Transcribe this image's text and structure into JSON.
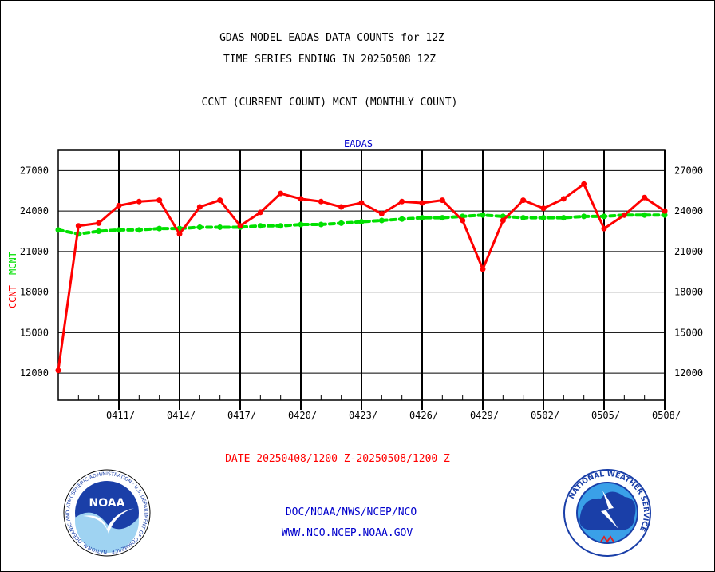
{
  "header": {
    "line1": "GDAS MODEL EADAS DATA COUNTS for 12Z",
    "line2": "TIME SERIES ENDING IN 20250508 12Z",
    "line3": "CCNT (CURRENT COUNT) MCNT (MONTHLY COUNT)"
  },
  "footer": {
    "date_range": "DATE 20250408/1200 Z-20250508/1200 Z",
    "org_path": "DOC/NOAA/NWS/NCEP/NCO",
    "website": "WWW.NCO.NCEP.NOAA.GOV"
  },
  "logos": {
    "left": {
      "icon": "noaa-logo",
      "center_text": "NOAA",
      "ring_text": "NATIONAL OCEANIC AND ATMOSPHERIC ADMINISTRATION · U.S. DEPARTMENT OF COMMERCE"
    },
    "right": {
      "icon": "nws-logo",
      "ring_text": "NATIONAL WEATHER SERVICE"
    }
  },
  "colors": {
    "ccnt": "#ff0000",
    "mcnt": "#00e000",
    "title_text": "#000000",
    "plot_title": "#0000cc",
    "footer_date": "#ff0000",
    "footer_links": "#0000cc"
  },
  "chart_data": {
    "type": "line",
    "title": "EADAS",
    "ylabel_primary": "CCNT",
    "ylabel_secondary": "MCNT",
    "ylim": [
      10000,
      28500
    ],
    "xlim": [
      "04/08",
      "05/08"
    ],
    "grid": true,
    "yticks": [
      12000,
      15000,
      18000,
      21000,
      24000,
      27000
    ],
    "ytick_labels": [
      "12000",
      "15000",
      "18000",
      "21000",
      "24000",
      "27000"
    ],
    "xtick_labels": [
      "0411/",
      "0414/",
      "0417/",
      "0420/",
      "0423/",
      "0426/",
      "0429/",
      "0502/",
      "0505/",
      "0508/"
    ],
    "x": [
      "04/08",
      "04/09",
      "04/10",
      "04/11",
      "04/12",
      "04/13",
      "04/14",
      "04/15",
      "04/16",
      "04/17",
      "04/18",
      "04/19",
      "04/20",
      "04/21",
      "04/22",
      "04/23",
      "04/24",
      "04/25",
      "04/26",
      "04/27",
      "04/28",
      "04/29",
      "04/30",
      "05/01",
      "05/02",
      "05/03",
      "05/04",
      "05/05",
      "05/06",
      "05/07",
      "05/08"
    ],
    "series": [
      {
        "name": "CCNT",
        "color": "#ff0000",
        "style": "solid",
        "values": [
          12200,
          22900,
          23100,
          24400,
          24700,
          24800,
          22300,
          24300,
          24800,
          22900,
          23900,
          25300,
          24900,
          24700,
          24300,
          24600,
          23800,
          24700,
          24600,
          24800,
          23300,
          19700,
          23300,
          24800,
          24200,
          24900,
          26000,
          22700,
          23700,
          25000,
          24000
        ]
      },
      {
        "name": "MCNT",
        "color": "#00e000",
        "style": "dashed",
        "values": [
          22600,
          22300,
          22500,
          22600,
          22600,
          22700,
          22700,
          22800,
          22800,
          22800,
          22900,
          22900,
          23000,
          23000,
          23100,
          23200,
          23300,
          23400,
          23500,
          23500,
          23600,
          23700,
          23600,
          23500,
          23500,
          23500,
          23600,
          23600,
          23700,
          23700,
          23700
        ]
      }
    ]
  }
}
